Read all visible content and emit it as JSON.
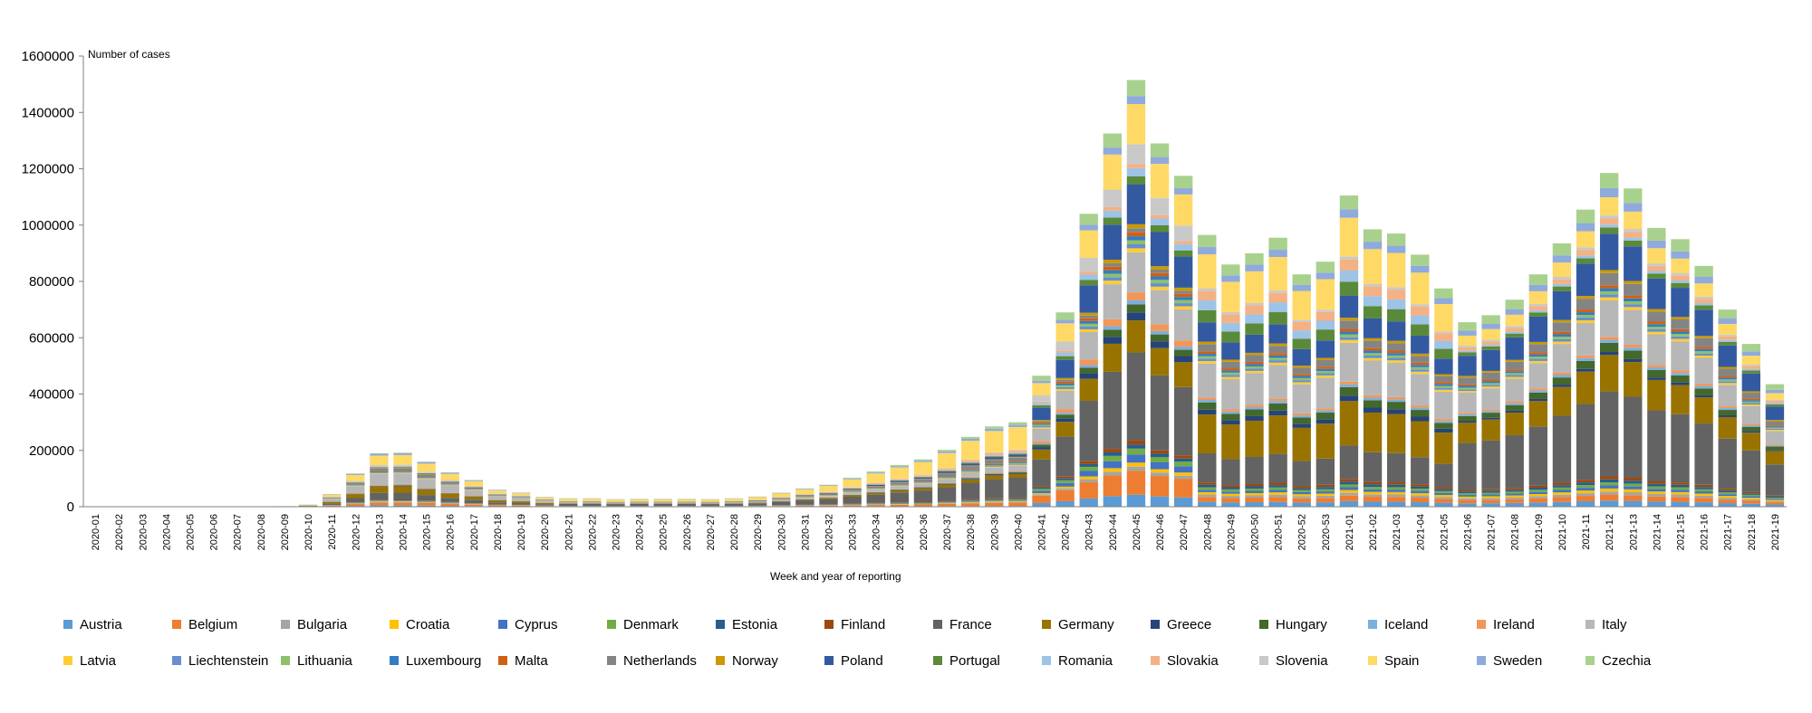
{
  "chart_data": {
    "type": "bar",
    "stacked": true,
    "ylabel": "Number of cases",
    "xlabel": "Week and year of reporting",
    "ylim": [
      0,
      1600000
    ],
    "yticks": [
      0,
      200000,
      400000,
      600000,
      800000,
      1000000,
      1200000,
      1400000,
      1600000
    ],
    "ytick_labels": [
      "0",
      "200000",
      "400000",
      "600000",
      "800000",
      "1000000",
      "1200000",
      "1400000",
      "1600000"
    ],
    "legend_position": "bottom",
    "categories": [
      "2020-01",
      "2020-02",
      "2020-03",
      "2020-04",
      "2020-05",
      "2020-06",
      "2020-07",
      "2020-08",
      "2020-09",
      "2020-10",
      "2020-11",
      "2020-12",
      "2020-13",
      "2020-14",
      "2020-15",
      "2020-16",
      "2020-17",
      "2020-18",
      "2020-19",
      "2020-20",
      "2020-21",
      "2020-22",
      "2020-23",
      "2020-24",
      "2020-25",
      "2020-26",
      "2020-27",
      "2020-28",
      "2020-29",
      "2020-30",
      "2020-31",
      "2020-32",
      "2020-33",
      "2020-34",
      "2020-35",
      "2020-36",
      "2020-37",
      "2020-38",
      "2020-39",
      "2020-40",
      "2020-41",
      "2020-42",
      "2020-43",
      "2020-44",
      "2020-45",
      "2020-46",
      "2020-47",
      "2020-48",
      "2020-49",
      "2020-50",
      "2020-51",
      "2020-52",
      "2020-53",
      "2021-01",
      "2021-02",
      "2021-03",
      "2021-04",
      "2021-05",
      "2021-06",
      "2021-07",
      "2021-08",
      "2021-09",
      "2021-10",
      "2021-11",
      "2021-12",
      "2021-13",
      "2021-14",
      "2021-15",
      "2021-16",
      "2021-17",
      "2021-18",
      "2021-19"
    ],
    "totals": [
      0,
      0,
      0,
      0,
      0,
      0,
      0,
      0,
      2000,
      8000,
      45000,
      118000,
      190000,
      192000,
      160000,
      122000,
      95000,
      60000,
      50000,
      35000,
      30000,
      30000,
      27000,
      28000,
      28000,
      28000,
      27000,
      30000,
      36000,
      50000,
      65000,
      78000,
      103000,
      125000,
      148000,
      168000,
      202000,
      248000,
      285000,
      300000,
      465000,
      690000,
      1040000,
      1325000,
      1515000,
      1290000,
      1175000,
      965000,
      860000,
      900000,
      955000,
      825000,
      870000,
      1105000,
      985000,
      970000,
      895000,
      775000,
      655000,
      680000,
      735000,
      825000,
      935000,
      1055000,
      1185000,
      1130000,
      990000,
      950000,
      855000,
      700000,
      578000,
      435000
    ],
    "series": [
      {
        "name": "Austria",
        "color": "#5b9bd5"
      },
      {
        "name": "Belgium",
        "color": "#ed7d31"
      },
      {
        "name": "Bulgaria",
        "color": "#a5a5a5"
      },
      {
        "name": "Croatia",
        "color": "#ffc000"
      },
      {
        "name": "Cyprus",
        "color": "#4472c4"
      },
      {
        "name": "Denmark",
        "color": "#70ad47"
      },
      {
        "name": "Estonia",
        "color": "#255e91"
      },
      {
        "name": "Finland",
        "color": "#9e480e"
      },
      {
        "name": "France",
        "color": "#636363"
      },
      {
        "name": "Germany",
        "color": "#997300"
      },
      {
        "name": "Greece",
        "color": "#264478"
      },
      {
        "name": "Hungary",
        "color": "#43682b"
      },
      {
        "name": "Iceland",
        "color": "#7cafdd"
      },
      {
        "name": "Ireland",
        "color": "#f1975a"
      },
      {
        "name": "Italy",
        "color": "#b7b7b7"
      },
      {
        "name": "Latvia",
        "color": "#ffcd33"
      },
      {
        "name": "Liechtenstein",
        "color": "#698ed0"
      },
      {
        "name": "Lithuania",
        "color": "#8cc168"
      },
      {
        "name": "Luxembourg",
        "color": "#327dc2"
      },
      {
        "name": "Malta",
        "color": "#d26012"
      },
      {
        "name": "Netherlands",
        "color": "#848484"
      },
      {
        "name": "Norway",
        "color": "#cc9a00"
      },
      {
        "name": "Poland",
        "color": "#335aa1"
      },
      {
        "name": "Portugal",
        "color": "#5a8a39"
      },
      {
        "name": "Romania",
        "color": "#9dc3e6"
      },
      {
        "name": "Slovakia",
        "color": "#f4b183"
      },
      {
        "name": "Slovenia",
        "color": "#c9c9c9"
      },
      {
        "name": "Spain",
        "color": "#ffd966"
      },
      {
        "name": "Sweden",
        "color": "#8faadc"
      },
      {
        "name": "Czechia",
        "color": "#a9d18e"
      }
    ]
  }
}
